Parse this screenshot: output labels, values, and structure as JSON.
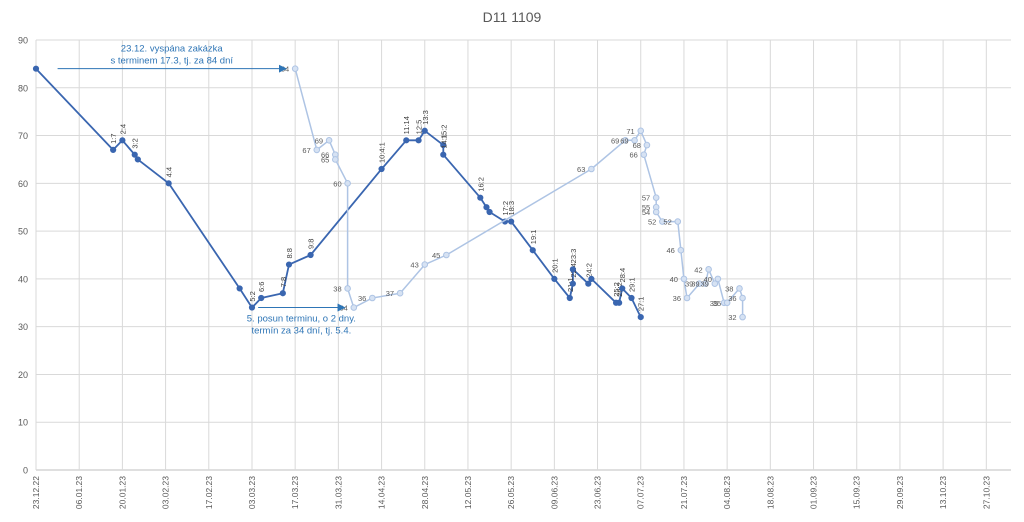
{
  "chart_data": {
    "type": "line",
    "title": "D11 1109",
    "xlabel": "",
    "ylabel": "",
    "ylim": [
      0,
      90
    ],
    "yticks": [
      "0",
      "10",
      "20",
      "30",
      "40",
      "50",
      "60",
      "70",
      "80",
      "90"
    ],
    "xlim": [
      "2022-12-23",
      "2023-11-04"
    ],
    "xticks": [
      {
        "date": "2022-12-23",
        "label": "23.12.22"
      },
      {
        "date": "2023-01-06",
        "label": "06.01.23"
      },
      {
        "date": "2023-01-20",
        "label": "20.01.23"
      },
      {
        "date": "2023-02-03",
        "label": "03.02.23"
      },
      {
        "date": "2023-02-17",
        "label": "17.02.23"
      },
      {
        "date": "2023-03-03",
        "label": "03.03.23"
      },
      {
        "date": "2023-03-17",
        "label": "17.03.23"
      },
      {
        "date": "2023-03-31",
        "label": "31.03.23"
      },
      {
        "date": "2023-04-14",
        "label": "14.04.23"
      },
      {
        "date": "2023-04-28",
        "label": "28.04.23"
      },
      {
        "date": "2023-05-12",
        "label": "12.05.23"
      },
      {
        "date": "2023-05-26",
        "label": "26.05.23"
      },
      {
        "date": "2023-06-09",
        "label": "09.06.23"
      },
      {
        "date": "2023-06-23",
        "label": "23.06.23"
      },
      {
        "date": "2023-07-07",
        "label": "07.07.23"
      },
      {
        "date": "2023-07-21",
        "label": "21.07.23"
      },
      {
        "date": "2023-08-04",
        "label": "04.08.23"
      },
      {
        "date": "2023-08-18",
        "label": "18.08.23"
      },
      {
        "date": "2023-09-01",
        "label": "01.09.23"
      },
      {
        "date": "2023-09-15",
        "label": "15.09.23"
      },
      {
        "date": "2023-09-29",
        "label": "29.09.23"
      },
      {
        "date": "2023-10-13",
        "label": "13.10.23"
      },
      {
        "date": "2023-10-27",
        "label": "27.10.23"
      }
    ],
    "grid": true,
    "colors": {
      "dark": "#3a66b0",
      "light": "#aec4e4",
      "grid": "#d9d9d9",
      "annotation": "#2e75b6",
      "axis_text": "#595959",
      "title": "#595959"
    },
    "series": [
      {
        "name": "",
        "style": "dark",
        "points": [
          {
            "x": "2022-12-23",
            "y": 84,
            "label": ""
          },
          {
            "x": "2023-01-17",
            "y": 67,
            "label": "1:7"
          },
          {
            "x": "2023-01-20",
            "y": 69,
            "label": "2:4"
          },
          {
            "x": "2023-01-24",
            "y": 66,
            "label": "3:2"
          },
          {
            "x": "2023-01-25",
            "y": 65,
            "label": ""
          },
          {
            "x": "2023-02-04",
            "y": 60,
            "label": "4:4"
          },
          {
            "x": "2023-02-27",
            "y": 38,
            "label": ""
          },
          {
            "x": "2023-03-03",
            "y": 34,
            "label": "5:2"
          },
          {
            "x": "2023-03-06",
            "y": 36,
            "label": "6:6"
          },
          {
            "x": "2023-03-13",
            "y": 37,
            "label": "7:8"
          },
          {
            "x": "2023-03-15",
            "y": 43,
            "label": "8:8"
          },
          {
            "x": "2023-03-22",
            "y": 45,
            "label": "9:8"
          },
          {
            "x": "2023-04-14",
            "y": 63,
            "label": "10:4:1"
          },
          {
            "x": "2023-04-22",
            "y": 69,
            "label": "11:14"
          },
          {
            "x": "2023-04-26",
            "y": 69,
            "label": "12:5"
          },
          {
            "x": "2023-04-28",
            "y": 71,
            "label": "13:3"
          },
          {
            "x": "2023-05-04",
            "y": 68,
            "label": "15:2"
          },
          {
            "x": "2023-05-04",
            "y": 66,
            "label": "14:1"
          },
          {
            "x": "2023-05-16",
            "y": 57,
            "label": "16:2"
          },
          {
            "x": "2023-05-18",
            "y": 55,
            "label": ""
          },
          {
            "x": "2023-05-19",
            "y": 54,
            "label": ""
          },
          {
            "x": "2023-05-24",
            "y": 52,
            "label": "17:2"
          },
          {
            "x": "2023-05-26",
            "y": 52,
            "label": "18:3"
          },
          {
            "x": "2023-06-02",
            "y": 46,
            "label": "19:1"
          },
          {
            "x": "2023-06-09",
            "y": 40,
            "label": "20:1"
          },
          {
            "x": "2023-06-14",
            "y": 36,
            "label": "21:1"
          },
          {
            "x": "2023-06-15",
            "y": 39,
            "label": "22:4"
          },
          {
            "x": "2023-06-15",
            "y": 42,
            "label": "23:3"
          },
          {
            "x": "2023-06-20",
            "y": 39,
            "label": "24:2"
          },
          {
            "x": "2023-06-21",
            "y": 40,
            "label": ""
          },
          {
            "x": "2023-06-29",
            "y": 35,
            "label": "25:2"
          },
          {
            "x": "2023-06-30",
            "y": 35,
            "label": "26:2"
          },
          {
            "x": "2023-07-01",
            "y": 38,
            "label": "28:4"
          },
          {
            "x": "2023-07-04",
            "y": 36,
            "label": "29:1"
          },
          {
            "x": "2023-07-07",
            "y": 32,
            "label": "27:1"
          }
        ]
      },
      {
        "name": "",
        "style": "light",
        "points": [
          {
            "x": "2023-03-17",
            "y": 84,
            "label": "84"
          },
          {
            "x": "2023-03-24",
            "y": 67,
            "label": "67"
          },
          {
            "x": "2023-03-28",
            "y": 69,
            "label": "69"
          },
          {
            "x": "2023-03-30",
            "y": 66,
            "label": "66"
          },
          {
            "x": "2023-03-30",
            "y": 65,
            "label": "65"
          },
          {
            "x": "2023-04-03",
            "y": 60,
            "label": "60"
          },
          {
            "x": "2023-04-03",
            "y": 38,
            "label": "38"
          },
          {
            "x": "2023-04-05",
            "y": 34,
            "label": "34"
          },
          {
            "x": "2023-04-11",
            "y": 36,
            "label": "36"
          },
          {
            "x": "2023-04-20",
            "y": 37,
            "label": "37"
          },
          {
            "x": "2023-04-28",
            "y": 43,
            "label": "43"
          },
          {
            "x": "2023-05-05",
            "y": 45,
            "label": "45"
          },
          {
            "x": "2023-06-21",
            "y": 63,
            "label": "63"
          },
          {
            "x": "2023-07-02",
            "y": 69,
            "label": "69"
          },
          {
            "x": "2023-07-05",
            "y": 69,
            "label": "69"
          },
          {
            "x": "2023-07-07",
            "y": 71,
            "label": "71"
          },
          {
            "x": "2023-07-09",
            "y": 68,
            "label": "68"
          },
          {
            "x": "2023-07-08",
            "y": 66,
            "label": "66"
          },
          {
            "x": "2023-07-12",
            "y": 57,
            "label": "57"
          },
          {
            "x": "2023-07-12",
            "y": 55,
            "label": "55"
          },
          {
            "x": "2023-07-12",
            "y": 54,
            "label": "54"
          },
          {
            "x": "2023-07-14",
            "y": 52,
            "label": "52"
          },
          {
            "x": "2023-07-19",
            "y": 52,
            "label": "52"
          },
          {
            "x": "2023-07-20",
            "y": 46,
            "label": "46"
          },
          {
            "x": "2023-07-21",
            "y": 40,
            "label": "40"
          },
          {
            "x": "2023-07-22",
            "y": 36,
            "label": "36"
          },
          {
            "x": "2023-07-26",
            "y": 39,
            "label": "39"
          },
          {
            "x": "2023-07-28",
            "y": 39,
            "label": "39"
          },
          {
            "x": "2023-07-29",
            "y": 42,
            "label": "42"
          },
          {
            "x": "2023-07-31",
            "y": 39,
            "label": "39"
          },
          {
            "x": "2023-08-01",
            "y": 40,
            "label": "40"
          },
          {
            "x": "2023-08-03",
            "y": 35,
            "label": "35"
          },
          {
            "x": "2023-08-04",
            "y": 35,
            "label": "35"
          },
          {
            "x": "2023-08-08",
            "y": 38,
            "label": "38"
          },
          {
            "x": "2023-08-09",
            "y": 36,
            "label": "36"
          },
          {
            "x": "2023-08-09",
            "y": 32,
            "label": "32"
          }
        ]
      }
    ],
    "annotations": [
      {
        "lines": [
          "23.12. vyspána zakázka",
          "s terminem 17.3, tj. za 84 dní"
        ],
        "arrow": {
          "from": {
            "x": "2022-12-30",
            "y": 84
          },
          "to": {
            "x": "2023-03-14",
            "y": 84
          }
        }
      },
      {
        "lines": [
          "5. posun terminu, o 2 dny.",
          "termín za 34 dní, tj. 5.4."
        ],
        "arrow": {
          "from": {
            "x": "2023-03-05",
            "y": 34
          },
          "to": {
            "x": "2023-04-02",
            "y": 34
          }
        }
      }
    ]
  }
}
